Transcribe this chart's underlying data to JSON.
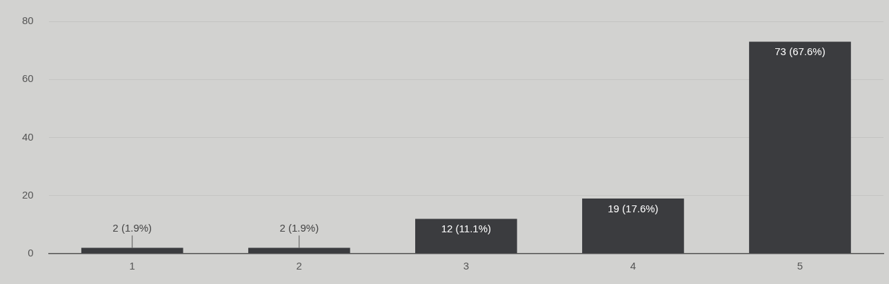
{
  "chart_data": {
    "type": "bar",
    "categories": [
      "1",
      "2",
      "3",
      "4",
      "5"
    ],
    "values": [
      2,
      2,
      12,
      19,
      73
    ],
    "value_labels": [
      "2 (1.9%)",
      "2 (1.9%)",
      "12 (11.1%)",
      "19 (17.6%)",
      "73 (67.6%)"
    ],
    "color": "#3b3c3f",
    "ylim": [
      0,
      80
    ],
    "yticks": [
      0,
      20,
      40,
      60,
      80
    ],
    "grid": "y",
    "legend": false
  }
}
